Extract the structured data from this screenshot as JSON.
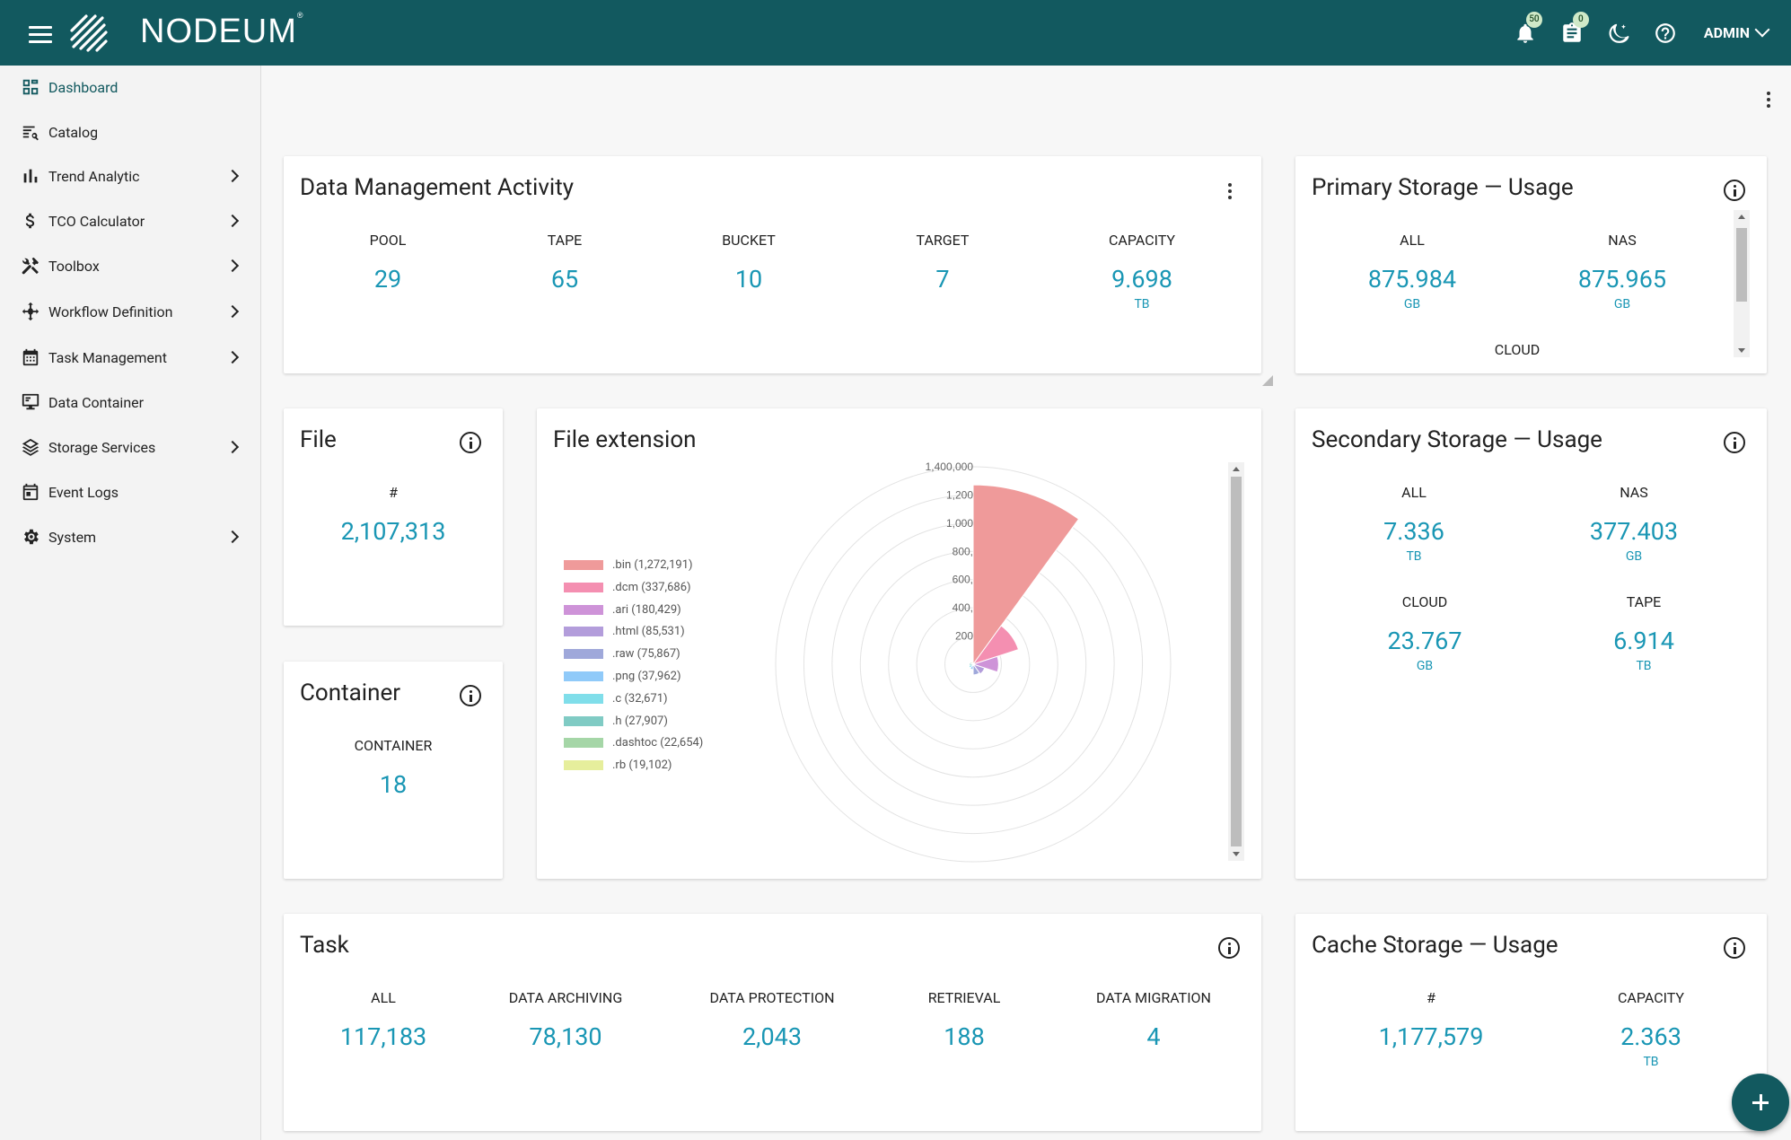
{
  "app": {
    "brand": "NODEUM",
    "trademark": "®"
  },
  "topbar": {
    "notifications_badge": "50",
    "tasks_badge": "0",
    "user_label": "ADMIN"
  },
  "sidebar": {
    "items": [
      {
        "label": "Dashboard",
        "icon": "dashboard-icon",
        "active": true,
        "expandable": false
      },
      {
        "label": "Catalog",
        "icon": "catalog-icon",
        "active": false,
        "expandable": false
      },
      {
        "label": "Trend Analytic",
        "icon": "bar-chart-icon",
        "active": false,
        "expandable": true
      },
      {
        "label": "TCO Calculator",
        "icon": "dollar-icon",
        "active": false,
        "expandable": true
      },
      {
        "label": "Toolbox",
        "icon": "tools-icon",
        "active": false,
        "expandable": true
      },
      {
        "label": "Workflow Definition",
        "icon": "workflow-icon",
        "active": false,
        "expandable": true
      },
      {
        "label": "Task Management",
        "icon": "calendar-grid-icon",
        "active": false,
        "expandable": true
      },
      {
        "label": "Data Container",
        "icon": "monitor-icon",
        "active": false,
        "expandable": false
      },
      {
        "label": "Storage Services",
        "icon": "layers-icon",
        "active": false,
        "expandable": true
      },
      {
        "label": "Event Logs",
        "icon": "event-calendar-icon",
        "active": false,
        "expandable": false
      },
      {
        "label": "System",
        "icon": "gear-icon",
        "active": false,
        "expandable": true
      }
    ]
  },
  "data_management": {
    "title": "Data Management Activity",
    "stats": [
      {
        "label": "POOL",
        "value": "29",
        "unit": ""
      },
      {
        "label": "TAPE",
        "value": "65",
        "unit": ""
      },
      {
        "label": "BUCKET",
        "value": "10",
        "unit": ""
      },
      {
        "label": "TARGET",
        "value": "7",
        "unit": ""
      },
      {
        "label": "CAPACITY",
        "value": "9.698",
        "unit": "TB"
      }
    ]
  },
  "primary_storage": {
    "title": "Primary Storage — Usage",
    "stats": [
      {
        "label": "ALL",
        "value": "875.984",
        "unit": "GB"
      },
      {
        "label": "NAS",
        "value": "875.965",
        "unit": "GB"
      }
    ],
    "partial_label": "CLOUD"
  },
  "file": {
    "title": "File",
    "label": "#",
    "value": "2,107,313"
  },
  "container": {
    "title": "Container",
    "label": "CONTAINER",
    "value": "18"
  },
  "file_extension": {
    "title": "File extension",
    "legend": [
      {
        "label": ".bin (1,272,191)",
        "color": "#ef9a9a"
      },
      {
        "label": ".dcm (337,686)",
        "color": "#f48fb1"
      },
      {
        "label": ".ari (180,429)",
        "color": "#ce93d8"
      },
      {
        "label": ".html (85,531)",
        "color": "#b39ddb"
      },
      {
        "label": ".raw (75,867)",
        "color": "#9fa8da"
      },
      {
        "label": ".png (37,962)",
        "color": "#90caf9"
      },
      {
        "label": ".c (32,671)",
        "color": "#80deea"
      },
      {
        "label": ".h (27,907)",
        "color": "#80cbc4"
      },
      {
        "label": ".dashtoc (22,654)",
        "color": "#a5d6a7"
      },
      {
        "label": ".rb (19,102)",
        "color": "#e6ee9c"
      }
    ],
    "radial_ticks": [
      "200",
      "400,",
      "600,",
      "800,",
      "1,000",
      "1,200",
      "1,400,000"
    ]
  },
  "chart_data": {
    "type": "polar-area",
    "categories": [
      ".bin",
      ".dcm",
      ".ari",
      ".html",
      ".raw",
      ".png",
      ".c",
      ".h",
      ".dashtoc",
      ".rb"
    ],
    "values": [
      1272191,
      337686,
      180429,
      85531,
      75867,
      37962,
      32671,
      27907,
      22654,
      19102
    ],
    "rmax": 1400000,
    "legend_position": "left"
  },
  "secondary_storage": {
    "title": "Secondary Storage — Usage",
    "stats": [
      {
        "label": "ALL",
        "value": "7.336",
        "unit": "TB"
      },
      {
        "label": "NAS",
        "value": "377.403",
        "unit": "GB"
      },
      {
        "label": "CLOUD",
        "value": "23.767",
        "unit": "GB"
      },
      {
        "label": "TAPE",
        "value": "6.914",
        "unit": "TB"
      }
    ]
  },
  "task": {
    "title": "Task",
    "stats": [
      {
        "label": "ALL",
        "value": "117,183"
      },
      {
        "label": "DATA ARCHIVING",
        "value": "78,130"
      },
      {
        "label": "DATA PROTECTION",
        "value": "2,043"
      },
      {
        "label": "RETRIEVAL",
        "value": "188"
      },
      {
        "label": "DATA MIGRATION",
        "value": "4"
      }
    ]
  },
  "cache_storage": {
    "title": "Cache Storage — Usage",
    "stats": [
      {
        "label": "#",
        "value": "1,177,579",
        "unit": ""
      },
      {
        "label": "CAPACITY",
        "value": "2.363",
        "unit": "TB"
      }
    ]
  },
  "colors": {
    "primary": "#12595f",
    "accent_value": "#1996b4"
  }
}
